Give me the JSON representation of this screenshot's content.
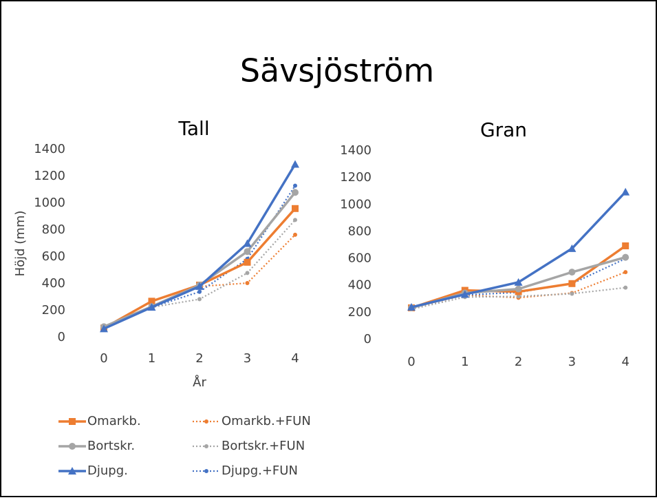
{
  "title": "Sävsjöström",
  "chart_data": [
    {
      "type": "line",
      "title": "Tall",
      "x_label": "År",
      "y_label": "Höjd (mm)",
      "categories": [
        "0",
        "1",
        "2",
        "3",
        "4"
      ],
      "ylim": [
        0,
        1400
      ],
      "yticks": [
        0,
        200,
        400,
        600,
        800,
        1000,
        1200,
        1400
      ],
      "series": [
        {
          "name": "Omarkb.",
          "color": "#ED7D31",
          "style": "solid",
          "marker": "square",
          "values": [
            70,
            270,
            390,
            560,
            960
          ]
        },
        {
          "name": "Omarkb.+FUN",
          "color": "#ED7D31",
          "style": "dotted",
          "marker": "circle",
          "values": [
            70,
            230,
            380,
            405,
            765
          ]
        },
        {
          "name": "Bortskr.",
          "color": "#A5A5A5",
          "style": "solid",
          "marker": "circle",
          "values": [
            80,
            230,
            390,
            640,
            1080
          ]
        },
        {
          "name": "Bortskr.+FUN",
          "color": "#A5A5A5",
          "style": "dotted",
          "marker": "circle",
          "values": [
            75,
            225,
            285,
            480,
            875
          ]
        },
        {
          "name": "Djupg.",
          "color": "#4472C4",
          "style": "solid",
          "marker": "triangle",
          "values": [
            65,
            225,
            380,
            700,
            1290
          ]
        },
        {
          "name": "Djupg.+FUN",
          "color": "#4472C4",
          "style": "dotted",
          "marker": "circle",
          "values": [
            70,
            225,
            340,
            585,
            1130
          ]
        }
      ]
    },
    {
      "type": "line",
      "title": "Gran",
      "categories": [
        "0",
        "1",
        "2",
        "3",
        "4"
      ],
      "ylim": [
        0,
        1400
      ],
      "yticks": [
        0,
        200,
        400,
        600,
        800,
        1000,
        1200,
        1400
      ],
      "series": [
        {
          "color": "#ED7D31",
          "style": "solid",
          "marker": "square",
          "values": [
            235,
            365,
            355,
            415,
            695
          ]
        },
        {
          "color": "#ED7D31",
          "style": "dotted",
          "marker": "circle",
          "values": [
            235,
            330,
            310,
            345,
            500
          ]
        },
        {
          "color": "#A5A5A5",
          "style": "solid",
          "marker": "circle",
          "values": [
            235,
            345,
            375,
            500,
            610
          ]
        },
        {
          "color": "#A5A5A5",
          "style": "dotted",
          "marker": "circle",
          "values": [
            225,
            315,
            320,
            340,
            385
          ]
        },
        {
          "color": "#4472C4",
          "style": "solid",
          "marker": "triangle",
          "values": [
            240,
            335,
            425,
            675,
            1095
          ]
        },
        {
          "color": "#4472C4",
          "style": "dotted",
          "marker": "circle",
          "values": [
            240,
            330,
            350,
            415,
            600
          ]
        }
      ]
    }
  ]
}
